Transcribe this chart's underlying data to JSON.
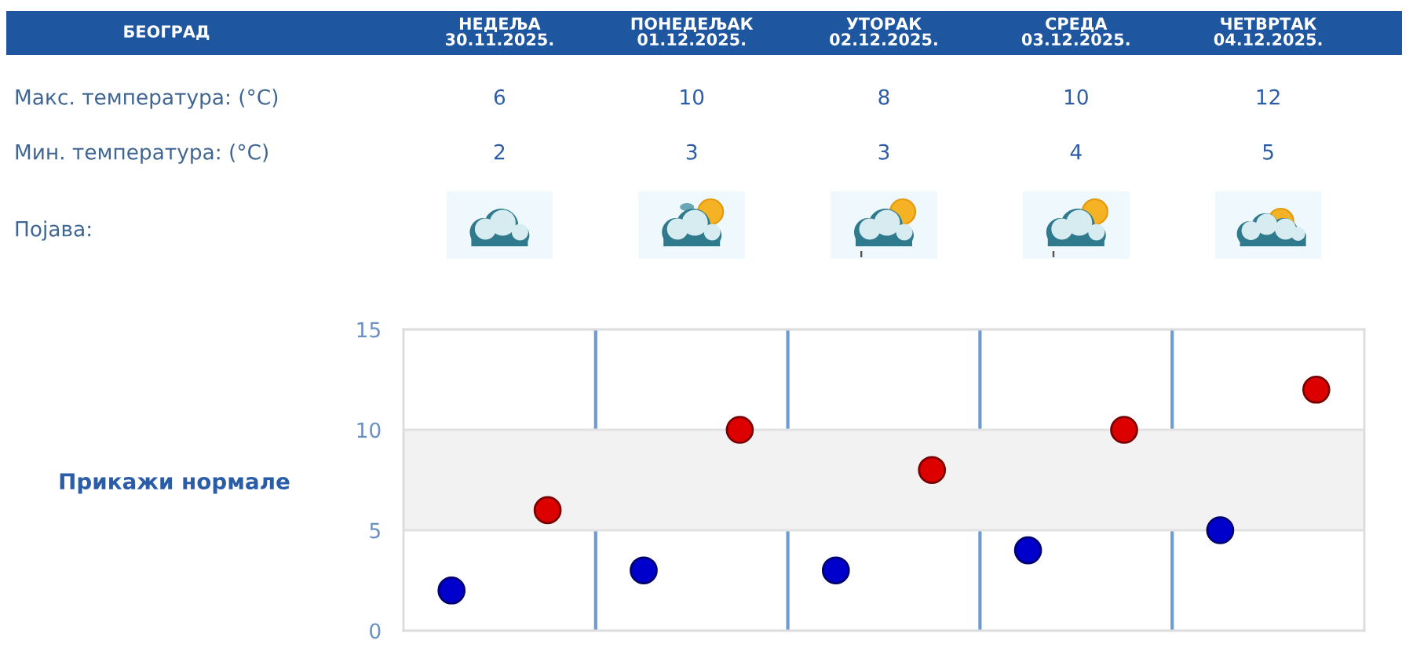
{
  "chart_data": {
    "type": "scatter",
    "title": "БЕОГРАД",
    "categories": [
      null,
      null,
      null,
      null,
      null
    ],
    "series": [
      {
        "color": "#dd0000",
        "values": [
          6,
          10,
          8,
          10,
          12
        ]
      },
      {
        "color": "#0000cc",
        "values": [
          2,
          3,
          3,
          4,
          5
        ]
      }
    ],
    "data_labels": true,
    "ylim": [
      0,
      15
    ],
    "yticks": [
      0,
      5,
      10,
      15
    ],
    "bands": [
      {
        "axis": "y",
        "from": 5,
        "to": 10,
        "color": "#f2f2f2"
      }
    ],
    "grid": "x",
    "tick_labels": "y",
    "annotations": [
      "НЕДЕЉА\n30.11.2025.",
      "ПОНЕДЕЉАК\n01.12.2025.",
      "УТОРАК\n02.12.2025.",
      "СРЕДА\n03.12.2025.",
      "ЧЕТВРТАК\n04.12.2025.",
      "Макс. температура: (°C)",
      "Мин. температура: (°C)",
      "Појава:",
      "Прикажи нормале"
    ]
  }
}
